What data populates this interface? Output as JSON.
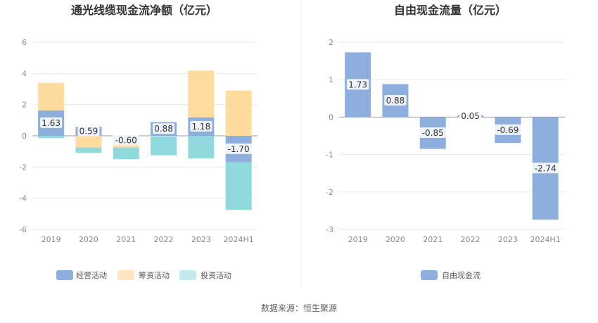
{
  "source_label": "数据来源：恒生聚源",
  "chart_data": [
    {
      "type": "bar",
      "stacked": true,
      "title": "通光线缆现金流净额（亿元）",
      "categories": [
        "2019",
        "2020",
        "2021",
        "2022",
        "2023",
        "2024H1"
      ],
      "series": [
        {
          "name": "经营活动",
          "color": "#8eaedd",
          "values": [
            1.63,
            0.59,
            -0.6,
            0.88,
            1.18,
            -1.7
          ]
        },
        {
          "name": "筹资活动",
          "color": "#ffdb9e",
          "values": [
            1.77,
            -0.75,
            -0.15,
            -0.05,
            3.0,
            2.9
          ]
        },
        {
          "name": "投资活动",
          "color": "#8fd8dc",
          "values": [
            -0.15,
            -0.35,
            -0.75,
            -1.2,
            -1.45,
            -3.05
          ]
        }
      ],
      "labels": [
        "1.63",
        "0.59",
        "-0.60",
        "0.88",
        "1.18",
        "-1.70"
      ],
      "ylim": [
        -6,
        6
      ],
      "yticks": [
        6,
        4,
        2,
        0,
        -2,
        -4,
        -6
      ],
      "legend_swatches": [
        "#8eaedd",
        "#ffe5c2",
        "#c2eaec"
      ],
      "legend_position": "bottom"
    },
    {
      "type": "bar",
      "title": "自由现金流量（亿元）",
      "categories": [
        "2019",
        "2020",
        "2021",
        "2022",
        "2023",
        "2024H1"
      ],
      "series": [
        {
          "name": "自由现金流",
          "color": "#8eaedd",
          "values": [
            1.73,
            0.88,
            -0.85,
            0.05,
            -0.69,
            -2.74
          ]
        }
      ],
      "labels": [
        "1.73",
        "0.88",
        "-0.85",
        "0.05",
        "-0.69",
        "-2.74"
      ],
      "ylim": [
        -3,
        2
      ],
      "yticks": [
        2,
        1,
        0,
        -1,
        -2,
        -3
      ],
      "legend_swatches": [
        "#8eaedd"
      ],
      "legend_position": "bottom"
    }
  ]
}
